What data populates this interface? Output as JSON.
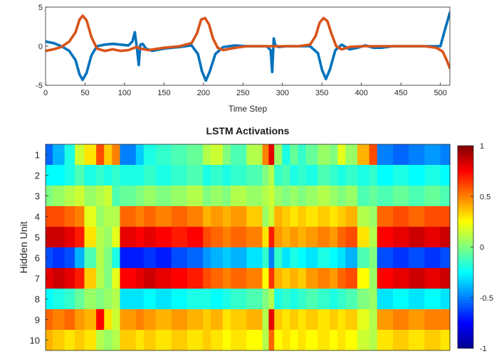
{
  "chart_data": [
    {
      "type": "line",
      "xlabel": "Time Step",
      "ylabel": "",
      "xlim": [
        0,
        512
      ],
      "ylim": [
        -5,
        5
      ],
      "xticks": [
        0,
        50,
        100,
        150,
        200,
        250,
        300,
        350,
        400,
        450,
        500
      ],
      "yticks": [
        -5,
        0,
        5
      ],
      "grid": false,
      "series": [
        {
          "color": "#0072BD",
          "x": [
            0,
            10,
            20,
            30,
            38,
            43,
            47,
            52,
            58,
            65,
            75,
            85,
            95,
            105,
            110,
            113,
            116,
            118,
            120,
            123,
            127,
            135,
            150,
            170,
            185,
            193,
            198,
            203,
            208,
            215,
            225,
            240,
            255,
            270,
            280,
            285,
            287,
            289,
            291,
            295,
            305,
            320,
            335,
            345,
            350,
            355,
            360,
            367,
            375,
            385,
            395,
            405,
            415,
            425,
            440,
            455,
            470,
            490,
            500,
            506,
            512
          ],
          "y": [
            0.6,
            0.4,
            0,
            -0.6,
            -1.8,
            -3.6,
            -4.3,
            -3.4,
            -1.2,
            0,
            0.2,
            0.3,
            0.2,
            0.1,
            0.6,
            1.8,
            -0.5,
            -2.4,
            0.2,
            0.3,
            -0.3,
            -0.6,
            -0.3,
            -0.1,
            0.1,
            -1,
            -3.2,
            -4.4,
            -3.2,
            -1,
            -0.1,
            0.1,
            0,
            0,
            0,
            -0.5,
            -3.3,
            1,
            0.1,
            -0.1,
            0,
            0,
            0,
            -0.9,
            -3,
            -4.2,
            -3,
            -0.5,
            0.2,
            -0.4,
            -0.2,
            0.1,
            -0.2,
            -0.2,
            0,
            0,
            0,
            0,
            0,
            2.2,
            4.3
          ]
        },
        {
          "color": "#D95319",
          "x": [
            0,
            10,
            20,
            30,
            38,
            43,
            47,
            52,
            58,
            65,
            75,
            85,
            95,
            105,
            115,
            120,
            130,
            150,
            170,
            185,
            192,
            197,
            202,
            207,
            212,
            218,
            225,
            240,
            255,
            270,
            285,
            300,
            320,
            335,
            342,
            347,
            352,
            357,
            362,
            368,
            375,
            385,
            400,
            420,
            440,
            460,
            480,
            495,
            503,
            508,
            512
          ],
          "y": [
            -0.6,
            -0.4,
            -0.1,
            0.6,
            1.8,
            3.4,
            3.9,
            3.3,
            1.2,
            -0.3,
            -0.6,
            -0.4,
            -0.6,
            -0.5,
            -0.1,
            -0.3,
            -0.5,
            -0.2,
            0,
            0.4,
            1.7,
            3.4,
            3.6,
            2.8,
            1,
            -0.2,
            -0.5,
            -0.2,
            0,
            0,
            0,
            0,
            0,
            0.2,
            1.3,
            3,
            3.6,
            3.2,
            1.6,
            0,
            -0.4,
            -0.1,
            0,
            0,
            0,
            0,
            0,
            -0.2,
            -0.7,
            -1.8,
            -2.8
          ]
        }
      ]
    },
    {
      "type": "heatmap",
      "title": "LSTM Activations",
      "xlabel": "",
      "ylabel": "Hidden Unit",
      "rows": [
        1,
        2,
        3,
        4,
        5,
        6,
        7,
        8,
        9,
        10
      ],
      "x_range": [
        1,
        512
      ],
      "colormap": "jet",
      "clim": [
        -1,
        1
      ],
      "colorbar_ticks": [
        -1,
        -0.5,
        0,
        0.5,
        1
      ],
      "segments_x_end": [
        10,
        25,
        38,
        50,
        65,
        75,
        85,
        95,
        115,
        125,
        140,
        160,
        180,
        200,
        210,
        225,
        235,
        255,
        275,
        283,
        290,
        300,
        310,
        320,
        330,
        345,
        360,
        370,
        380,
        395,
        410,
        420,
        440,
        460,
        480,
        500,
        512
      ],
      "values": [
        [
          -0.55,
          -0.4,
          -0.2,
          0.15,
          0.3,
          0.6,
          0.35,
          0.5,
          -0.5,
          -0.35,
          -0.2,
          -0.15,
          -0.1,
          -0.05,
          0.1,
          0.15,
          0,
          -0.1,
          0.1,
          0.5,
          0.8,
          0.05,
          -0.2,
          -0.05,
          -0.15,
          -0.05,
          0.05,
          0,
          0.2,
          0.05,
          0.4,
          0.6,
          -0.5,
          -0.55,
          -0.5,
          -0.45,
          -0.5
        ],
        [
          -0.25,
          -0.25,
          -0.2,
          -0.1,
          -0.2,
          -0.15,
          -0.2,
          -0.15,
          -0.2,
          -0.2,
          -0.15,
          -0.2,
          -0.15,
          -0.1,
          -0.2,
          -0.15,
          -0.2,
          -0.15,
          -0.1,
          0,
          0.1,
          -0.15,
          -0.1,
          -0.2,
          -0.15,
          -0.2,
          -0.1,
          -0.15,
          -0.2,
          -0.15,
          -0.2,
          -0.15,
          -0.25,
          -0.2,
          -0.25,
          -0.2,
          -0.25
        ],
        [
          0,
          0.05,
          0.1,
          0.15,
          0.05,
          0.1,
          0.15,
          -0.1,
          -0.05,
          0,
          0.05,
          0,
          0.05,
          0.1,
          0,
          0.05,
          0,
          0.1,
          0.05,
          0.1,
          0.15,
          0.05,
          0,
          0.05,
          0,
          0.05,
          0.1,
          0.05,
          0,
          0.05,
          -0.1,
          -0.05,
          -0.1,
          -0.05,
          -0.1,
          -0.05,
          -0.1
        ],
        [
          0.6,
          0.6,
          0.55,
          0.5,
          0.2,
          0.05,
          0.1,
          0.1,
          0.55,
          0.5,
          0.55,
          0.5,
          0.55,
          0.5,
          0.4,
          0.45,
          0.4,
          0.45,
          0.35,
          0.05,
          0.15,
          0.4,
          0.35,
          0.3,
          0.35,
          0.3,
          0.35,
          0.3,
          0.35,
          0.4,
          0.1,
          0.05,
          0.55,
          0.6,
          0.55,
          0.6,
          0.6
        ],
        [
          0.85,
          0.85,
          0.8,
          0.7,
          0.3,
          0.1,
          0.05,
          0.2,
          0.8,
          0.75,
          0.8,
          0.75,
          0.7,
          0.75,
          0.6,
          0.55,
          0.5,
          0.55,
          0.5,
          0.3,
          0.7,
          0.45,
          0.4,
          0.45,
          0.4,
          0.45,
          0.5,
          0.45,
          0.55,
          0.6,
          0.3,
          0.1,
          0.75,
          0.8,
          0.85,
          0.8,
          0.85
        ],
        [
          -0.6,
          -0.65,
          -0.6,
          -0.4,
          -0.1,
          0.1,
          0,
          -0.2,
          -0.7,
          -0.7,
          -0.65,
          -0.7,
          -0.6,
          -0.55,
          -0.45,
          -0.4,
          -0.35,
          -0.4,
          -0.3,
          -0.15,
          -0.5,
          -0.15,
          -0.3,
          -0.2,
          -0.25,
          -0.3,
          -0.2,
          -0.25,
          -0.3,
          -0.4,
          -0.1,
          0,
          -0.6,
          -0.65,
          -0.6,
          -0.65,
          -0.6
        ],
        [
          0.8,
          0.85,
          0.8,
          0.7,
          0.35,
          0.1,
          0,
          0.2,
          0.75,
          0.8,
          0.85,
          0.8,
          0.75,
          0.7,
          0.6,
          0.55,
          0.5,
          0.55,
          0.5,
          0.25,
          0.65,
          0.4,
          0.35,
          0.4,
          0.35,
          0.45,
          0.5,
          0.45,
          0.55,
          0.6,
          0.25,
          0.05,
          0.75,
          0.8,
          0.85,
          0.8,
          0.85
        ],
        [
          -0.25,
          -0.2,
          -0.15,
          -0.05,
          0.05,
          0,
          0.05,
          0.1,
          -0.3,
          -0.3,
          -0.25,
          -0.3,
          -0.25,
          -0.2,
          -0.2,
          -0.25,
          -0.2,
          -0.15,
          -0.1,
          0,
          0.1,
          -0.2,
          -0.15,
          -0.2,
          -0.15,
          -0.1,
          -0.15,
          -0.2,
          -0.15,
          -0.1,
          0,
          0.05,
          -0.3,
          -0.25,
          -0.3,
          -0.25,
          -0.3
        ],
        [
          0.55,
          0.5,
          0.55,
          0.45,
          0.4,
          0.75,
          0.3,
          0.15,
          0.45,
          0.5,
          0.45,
          0.4,
          0.45,
          0.4,
          0.35,
          0.4,
          0.3,
          0.35,
          0.4,
          0.1,
          0.8,
          0.35,
          0.3,
          0.35,
          0.3,
          0.35,
          0.3,
          0.35,
          0.3,
          0.35,
          0.2,
          0.1,
          0.45,
          0.5,
          0.45,
          0.5,
          0.5
        ],
        [
          0.4,
          0.35,
          0.3,
          0.35,
          0.3,
          0.1,
          0.05,
          0.1,
          0.35,
          0.3,
          0.35,
          0.3,
          0.35,
          0.3,
          0.35,
          0.3,
          0.25,
          0.3,
          0.25,
          0.1,
          0.55,
          0.25,
          0.3,
          0.25,
          0.3,
          0.25,
          0.3,
          0.25,
          0.3,
          0.25,
          0.15,
          0.1,
          0.3,
          0.35,
          0.3,
          0.35,
          0.3
        ]
      ]
    }
  ]
}
